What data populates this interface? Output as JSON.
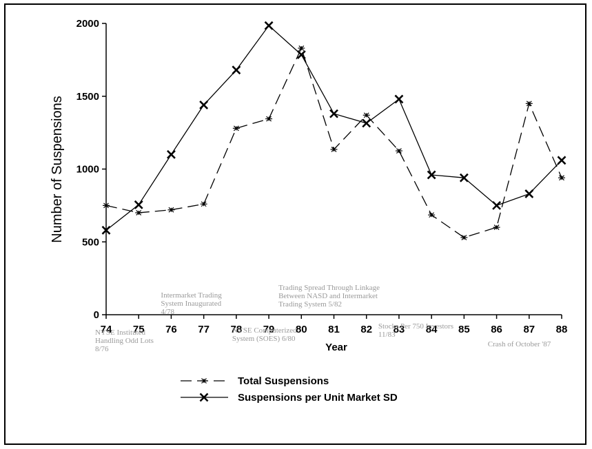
{
  "chart_data": {
    "type": "line",
    "title": "",
    "xlabel": "Year",
    "ylabel": "Number of Suspensions",
    "x": [
      "74",
      "75",
      "76",
      "77",
      "78",
      "79",
      "80",
      "81",
      "82",
      "83",
      "84",
      "85",
      "86",
      "87",
      "88"
    ],
    "ylim": [
      0,
      2000
    ],
    "yticks": [
      0,
      500,
      1000,
      1500,
      2000
    ],
    "grid": false,
    "legend_position": "bottom",
    "series": [
      {
        "name": "Total Suspensions",
        "style": "dashed",
        "marker": "asterisk",
        "color": "#000000",
        "values": [
          750,
          700,
          720,
          760,
          1280,
          1345,
          1830,
          1135,
          1370,
          1125,
          685,
          530,
          600,
          1450,
          940
        ]
      },
      {
        "name": "Suspensions per Unit Market SD",
        "style": "solid",
        "marker": "x",
        "color": "#000000",
        "values": [
          580,
          755,
          1100,
          1440,
          1680,
          1985,
          1785,
          1380,
          1315,
          1480,
          960,
          940,
          750,
          830,
          1060
        ]
      }
    ],
    "annotations": [
      {
        "lines": [
          "Intermarket Trading",
          "System Inaugurated",
          "4/78"
        ],
        "year": "76"
      },
      {
        "lines": [
          "Trading Spread Through Linkage",
          "Between NASD and Intermarket",
          "Trading System 5/82"
        ],
        "year": "79"
      },
      {
        "lines": [
          "NYSE Instituted",
          "Handling Odd Lots",
          "8/76"
        ],
        "year": "74"
      },
      {
        "lines": [
          "NYSE Computerized",
          "System (SOES) 6/80"
        ],
        "year": "78"
      },
      {
        "lines": [
          "Stocks Per 750 Investors",
          "11/83"
        ],
        "year": "83"
      },
      {
        "lines": [
          "Crash of October '87"
        ],
        "year": "87"
      }
    ]
  }
}
